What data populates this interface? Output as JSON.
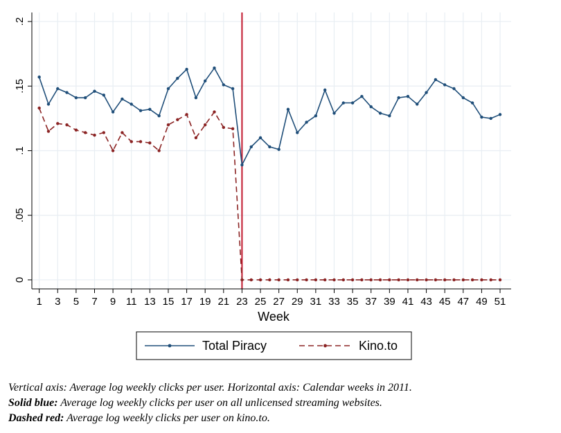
{
  "chart_data": {
    "type": "line",
    "xlabel": "Week",
    "ylabel": "",
    "xlim": [
      0.2,
      52.2
    ],
    "ylim": [
      -0.007,
      0.207
    ],
    "x_ticks": [
      1,
      3,
      5,
      7,
      9,
      11,
      13,
      15,
      17,
      19,
      21,
      23,
      25,
      27,
      29,
      31,
      33,
      35,
      37,
      39,
      41,
      43,
      45,
      47,
      49,
      51
    ],
    "y_ticks": [
      0,
      0.05,
      0.1,
      0.15,
      0.2
    ],
    "y_tick_labels": [
      "0",
      ".05",
      ".1",
      ".15",
      ".2"
    ],
    "grid": true,
    "vertical_line": {
      "x": 23,
      "color": "#c0142b"
    },
    "legend_position": "bottom",
    "x": [
      1,
      2,
      3,
      4,
      5,
      6,
      7,
      8,
      9,
      10,
      11,
      12,
      13,
      14,
      15,
      16,
      17,
      18,
      19,
      20,
      21,
      22,
      23,
      24,
      25,
      26,
      27,
      28,
      29,
      30,
      31,
      32,
      33,
      34,
      35,
      36,
      37,
      38,
      39,
      40,
      41,
      42,
      43,
      44,
      45,
      46,
      47,
      48,
      49,
      50,
      51
    ],
    "series": [
      {
        "name": "Total Piracy",
        "color": "#1f4e79",
        "dash": false,
        "values": [
          0.157,
          0.136,
          0.148,
          0.145,
          0.141,
          0.141,
          0.146,
          0.143,
          0.13,
          0.14,
          0.136,
          0.131,
          0.132,
          0.127,
          0.148,
          0.156,
          0.163,
          0.141,
          0.154,
          0.164,
          0.151,
          0.148,
          0.089,
          0.103,
          0.11,
          0.103,
          0.101,
          0.132,
          0.114,
          0.122,
          0.127,
          0.147,
          0.129,
          0.137,
          0.137,
          0.142,
          0.134,
          0.129,
          0.127,
          0.141,
          0.142,
          0.136,
          0.145,
          0.155,
          0.151,
          0.148,
          0.141,
          0.137,
          0.126,
          0.125,
          0.128
        ]
      },
      {
        "name": "Kino.to",
        "color": "#8b2323",
        "dash": true,
        "values": [
          0.133,
          0.115,
          0.121,
          0.12,
          0.116,
          0.114,
          0.112,
          0.114,
          0.1,
          0.114,
          0.107,
          0.107,
          0.106,
          0.1,
          0.12,
          0.124,
          0.128,
          0.11,
          0.12,
          0.13,
          0.118,
          0.117,
          0,
          0,
          0,
          0,
          0,
          0,
          0,
          0,
          0,
          0,
          0,
          0,
          0,
          0,
          0,
          0,
          0,
          0,
          0,
          0,
          0,
          0,
          0,
          0,
          0,
          0,
          0,
          0,
          0
        ]
      }
    ]
  },
  "caption": {
    "line1": "Vertical axis: Average log weekly clicks per user. Horizontal axis: Calendar weeks in 2011.",
    "line2_label": "Solid blue:",
    "line2_text": " Average log weekly clicks per user on all unlicensed streaming websites.",
    "line3_label": "Dashed red:",
    "line3_text": " Average log weekly clicks per user on kino.to."
  }
}
